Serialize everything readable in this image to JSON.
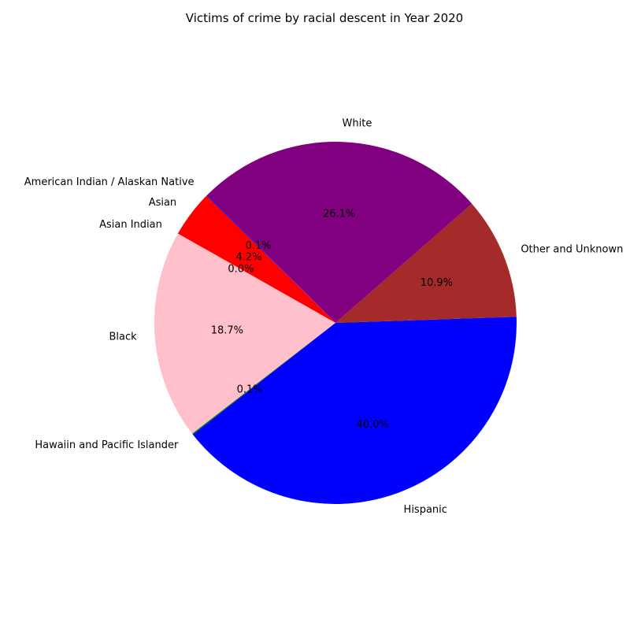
{
  "chart_data": {
    "type": "pie",
    "title": "Victims of crime by racial descent in Year 2020",
    "categories": [
      "American Indian / Alaskan Native",
      "Asian",
      "Asian Indian",
      "Black",
      "Hawaiin and Pacific Islander",
      "Hispanic",
      "Other and Unknown",
      "White"
    ],
    "values": [
      0.1,
      4.2,
      0.0,
      18.7,
      0.1,
      40.0,
      10.9,
      26.1
    ],
    "percent_labels": [
      "0.1%",
      "4.2%",
      "0.0%",
      "18.7%",
      "0.1%",
      "40.0%",
      "10.9%",
      "26.1%"
    ],
    "colors": [
      "#0000ff",
      "#ff0000",
      "#008000",
      "#ffc0cb",
      "#008000",
      "#0000ff",
      "#a52a2a",
      "#800080"
    ],
    "start_angle_deg": 135,
    "direction": "counterclockwise",
    "legend": "none"
  }
}
